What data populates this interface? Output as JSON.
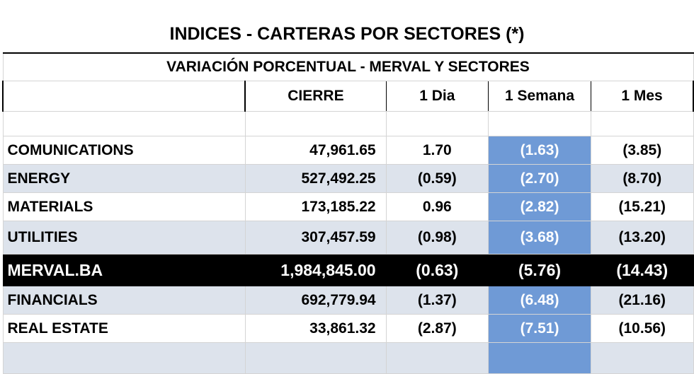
{
  "title": "INDICES - CARTERAS POR SECTORES (*)",
  "table": {
    "subtitle": "VARIACIÓN PORCENTUAL - MERVAL Y SECTORES",
    "columns": [
      "CIERRE",
      "1 Dia",
      "1 Semana",
      "1 Mes"
    ],
    "rows": [
      {
        "name": "COMUNICATIONS",
        "cierre": "47,961.65",
        "dia": "1.70",
        "semana": "(1.63)",
        "mes": "(3.85)",
        "style": "white"
      },
      {
        "name": "ENERGY",
        "cierre": "527,492.25",
        "dia": "(0.59)",
        "semana": "(2.70)",
        "mes": "(8.70)",
        "style": "shade"
      },
      {
        "name": "MATERIALS",
        "cierre": "173,185.22",
        "dia": "0.96",
        "semana": "(2.82)",
        "mes": "(15.21)",
        "style": "white"
      },
      {
        "name": "UTILITIES",
        "cierre": "307,457.59",
        "dia": "(0.98)",
        "semana": "(3.68)",
        "mes": "(13.20)",
        "style": "shade"
      },
      {
        "name": "MERVAL.BA",
        "cierre": "1,984,845.00",
        "dia": "(0.63)",
        "semana": "(5.76)",
        "mes": "(14.43)",
        "style": "black"
      },
      {
        "name": "FINANCIALS",
        "cierre": "692,779.94",
        "dia": "(1.37)",
        "semana": "(6.48)",
        "mes": "(21.16)",
        "style": "shade"
      },
      {
        "name": "REAL ESTATE",
        "cierre": "33,861.32",
        "dia": "(2.87)",
        "semana": "(7.51)",
        "mes": "(10.56)",
        "style": "white"
      }
    ]
  },
  "colors": {
    "highlight_blue": "#6f9ad6",
    "row_shade": "#dde3ec",
    "merval_row": "#000000"
  }
}
